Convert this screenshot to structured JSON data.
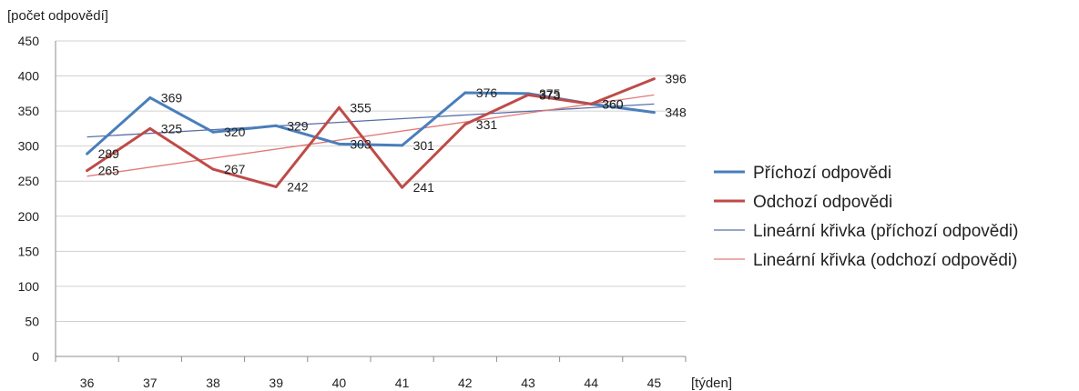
{
  "chart_data": {
    "type": "line",
    "title": "",
    "ylabel": "[počet odpovědí]",
    "xlabel": "[týden]",
    "categories": [
      "36",
      "37",
      "38",
      "39",
      "40",
      "41",
      "42",
      "43",
      "44",
      "45"
    ],
    "ylim": [
      0,
      450
    ],
    "yticks": [
      "0",
      "50",
      "100",
      "150",
      "200",
      "250",
      "300",
      "350",
      "400",
      "450"
    ],
    "grid": true,
    "legend_position": "right",
    "series": [
      {
        "name": "Příchozí odpovědi",
        "values": [
          289,
          369,
          320,
          329,
          303,
          301,
          376,
          375,
          360,
          348
        ],
        "color": "#4a7ebb",
        "style": "solid-thick",
        "labels": [
          "289",
          "369",
          "320",
          "329",
          "303",
          "301",
          "376",
          "375",
          "360",
          "348"
        ]
      },
      {
        "name": "Odchozí odpovědi",
        "values": [
          265,
          325,
          267,
          242,
          355,
          241,
          331,
          373,
          360,
          396
        ],
        "color": "#be4b48",
        "style": "solid-thick",
        "labels": [
          "265",
          "325",
          "267",
          "242",
          "355",
          "241",
          "331",
          "373",
          "360",
          "396"
        ]
      },
      {
        "name": "Lineární křivka (příchozí odpovědi)",
        "trend": [
          313,
          360
        ],
        "color": "#5a6fa8",
        "style": "thin"
      },
      {
        "name": "Lineární křivka (odchozí odpovědi)",
        "trend": [
          257,
          373
        ],
        "color": "#e07a78",
        "style": "thin"
      }
    ]
  }
}
